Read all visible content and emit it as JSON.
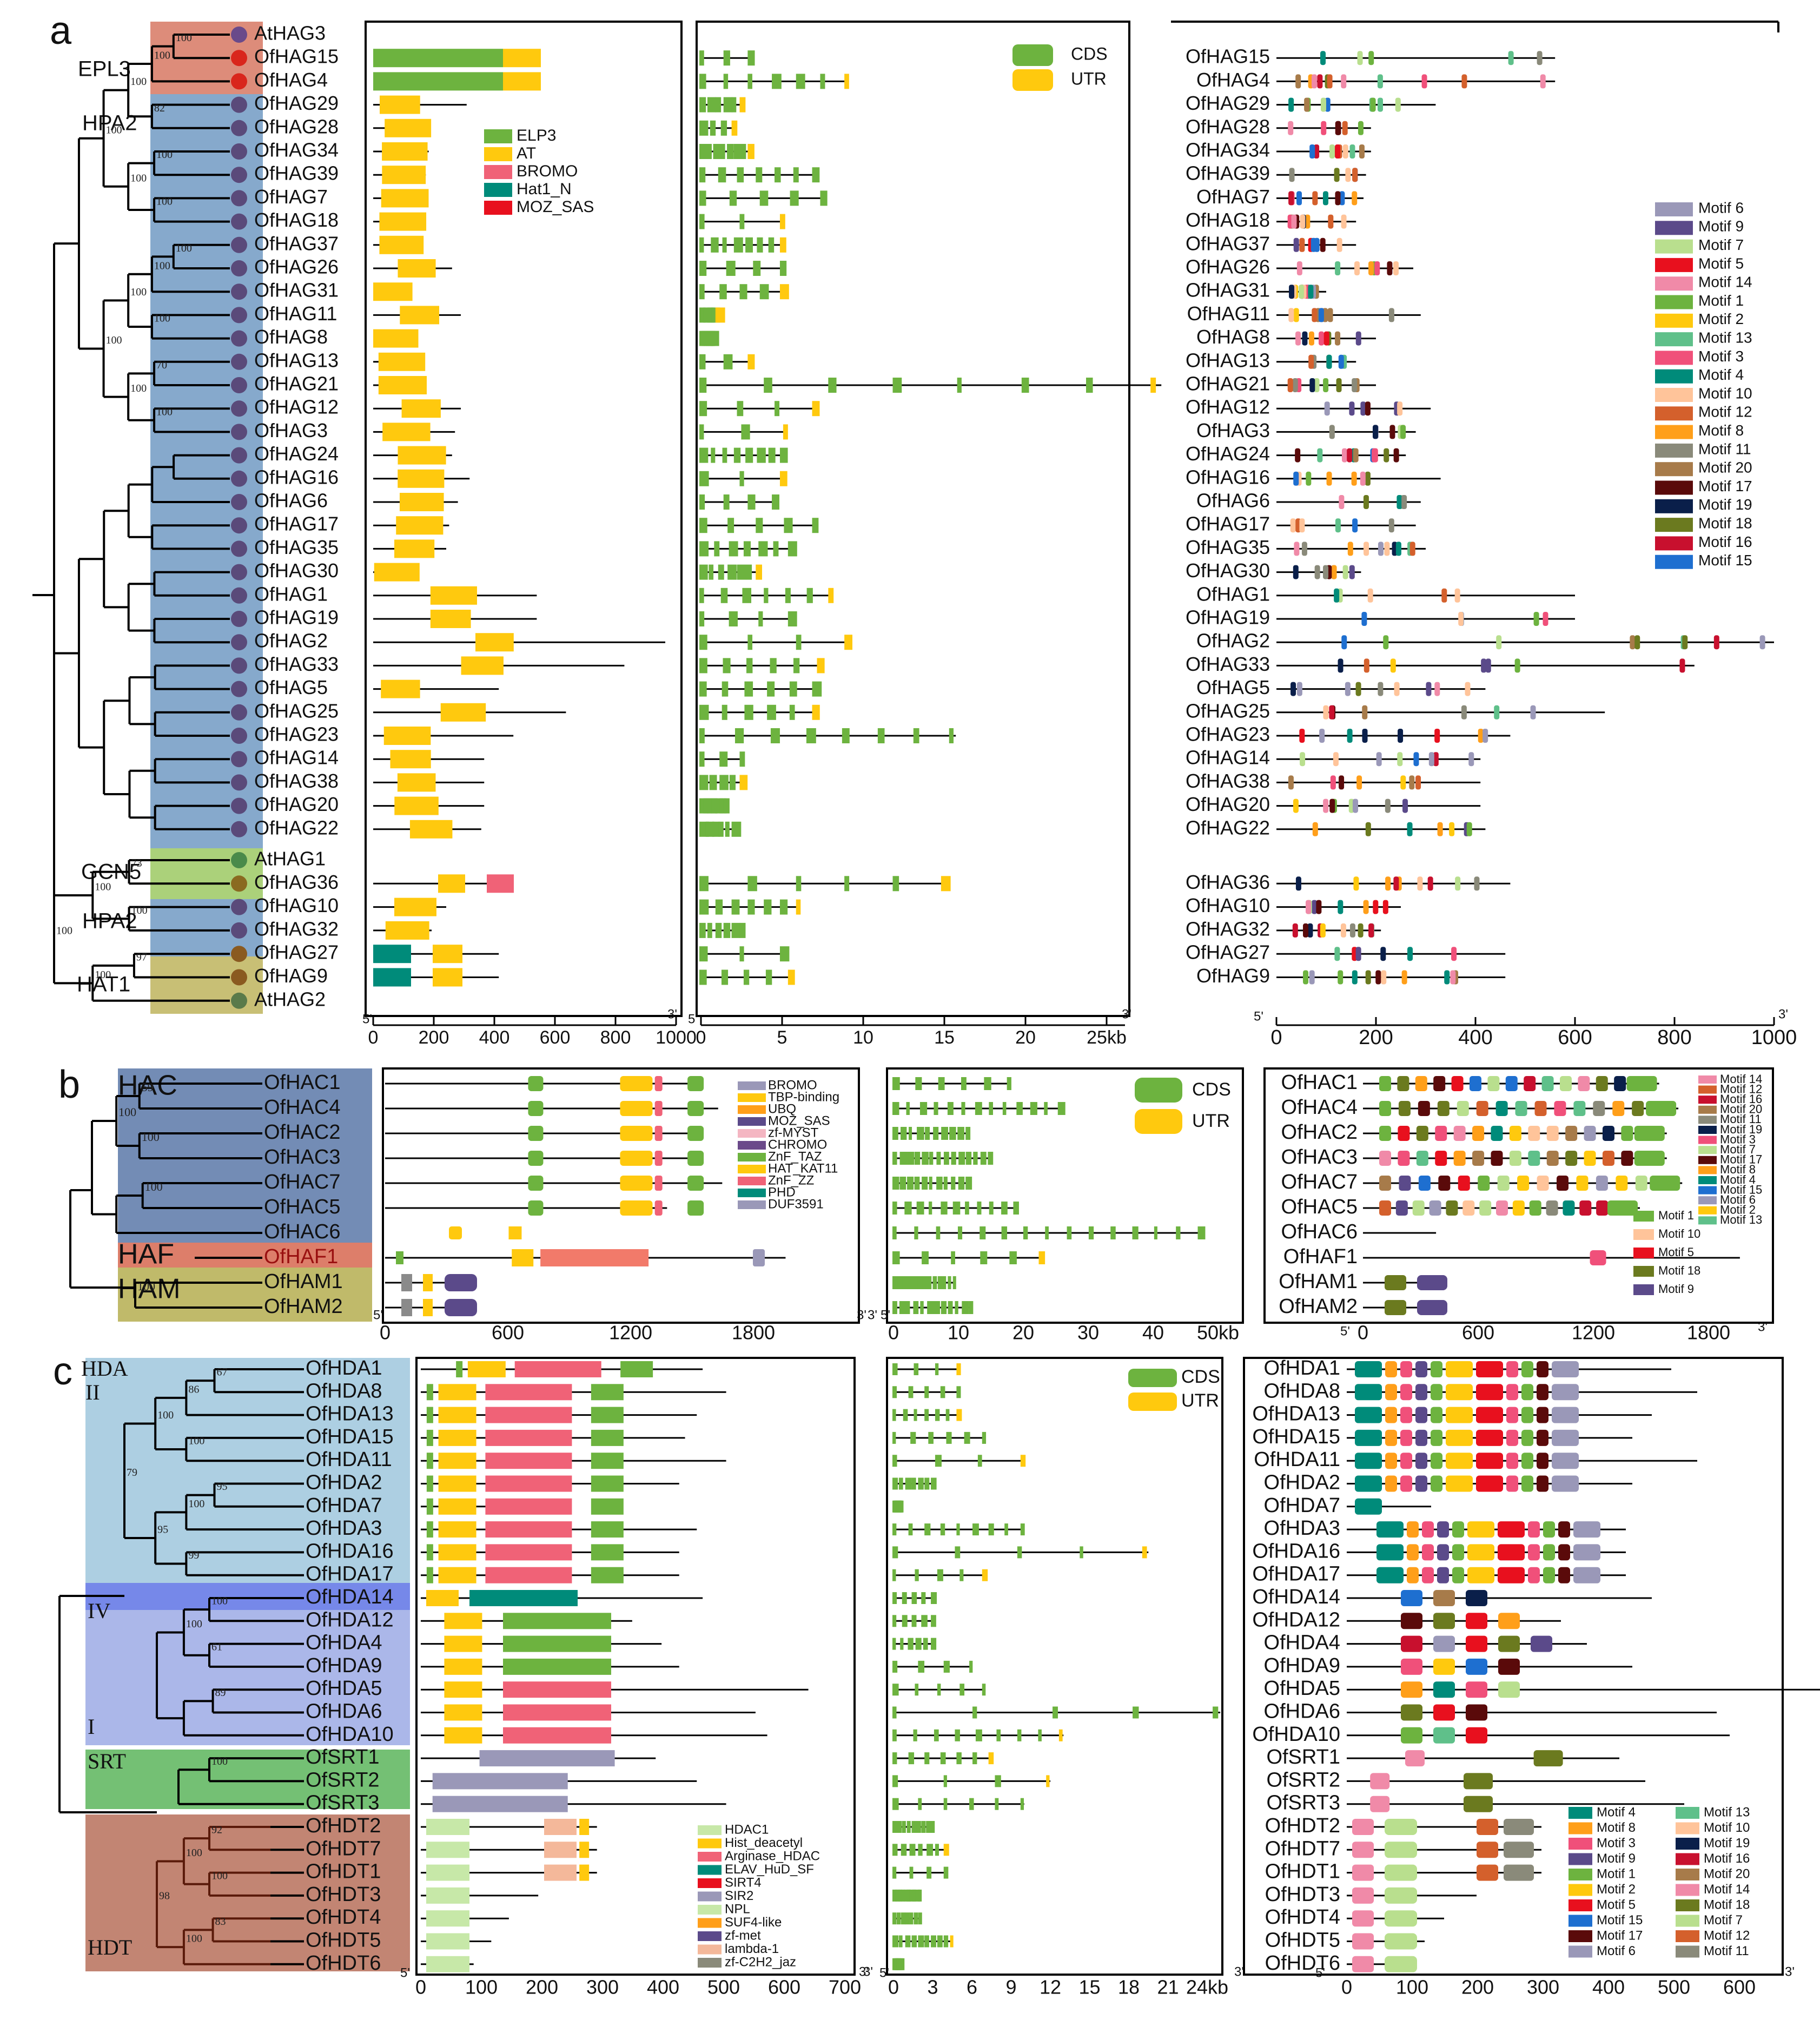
{
  "panel_labels": [
    "a",
    "b",
    "c"
  ],
  "a": {
    "groups": [
      "EPL3",
      "HPA2",
      "GCN5",
      "HPA2",
      "HAT1"
    ],
    "taxa": [
      "AtHAG3",
      "OfHAG15",
      "OfHAG4",
      "OfHAG29",
      "OfHAG28",
      "OfHAG34",
      "OfHAG39",
      "OfHAG7",
      "OfHAG18",
      "OfHAG37",
      "OfHAG26",
      "OfHAG31",
      "OfHAG11",
      "OfHAG8",
      "OfHAG13",
      "OfHAG21",
      "OfHAG12",
      "OfHAG3",
      "OfHAG24",
      "OfHAG16",
      "OfHAG6",
      "OfHAG17",
      "OfHAG35",
      "OfHAG30",
      "OfHAG1",
      "OfHAG19",
      "OfHAG2",
      "OfHAG33",
      "OfHAG5",
      "OfHAG25",
      "OfHAG23",
      "OfHAG14",
      "OfHAG38",
      "OfHAG20",
      "OfHAG22",
      "AtHAG1",
      "OfHAG36",
      "OfHAG10",
      "OfHAG32",
      "OfHAG27",
      "OfHAG9",
      "AtHAG2"
    ],
    "domain_legend": [
      "ELP3",
      "AT",
      "BROMO",
      "Hat1_N",
      "MOZ_SAS"
    ],
    "gene_legend": [
      "CDS",
      "UTR"
    ],
    "domain_axis": [
      "0",
      "200",
      "400",
      "600",
      "800",
      "1000"
    ],
    "gene_axis": [
      "0",
      "5",
      "10",
      "15",
      "20",
      "25kb"
    ],
    "motif_axis": [
      "0",
      "200",
      "400",
      "600",
      "800",
      "1000"
    ],
    "motif_legend": [
      "Motif 6",
      "Motif 9",
      "Motif 7",
      "Motif 5",
      "Motif 14",
      "Motif 1",
      "Motif 2",
      "Motif 13",
      "Motif 3",
      "Motif 4",
      "Motif 10",
      "Motif 12",
      "Motif 8",
      "Motif 11",
      "Motif 20",
      "Motif 17",
      "Motif 19",
      "Motif 18",
      "Motif 16",
      "Motif 15"
    ],
    "motif_taxa": [
      "OfHAG15",
      "OfHAG4",
      "OfHAG29",
      "OfHAG28",
      "OfHAG34",
      "OfHAG39",
      "OfHAG7",
      "OfHAG18",
      "OfHAG37",
      "OfHAG26",
      "OfHAG31",
      "OfHAG11",
      "OfHAG8",
      "OfHAG13",
      "OfHAG21",
      "OfHAG12",
      "OfHAG3",
      "OfHAG24",
      "OfHAG16",
      "OfHAG6",
      "OfHAG17",
      "OfHAG35",
      "OfHAG30",
      "OfHAG1",
      "OfHAG19",
      "OfHAG2",
      "OfHAG33",
      "OfHAG5",
      "OfHAG25",
      "OfHAG23",
      "OfHAG14",
      "OfHAG38",
      "OfHAG20",
      "OfHAG22",
      "OfHAG36",
      "OfHAG10",
      "OfHAG32",
      "OfHAG27",
      "OfHAG9"
    ],
    "bootstrap": [
      "100",
      "100",
      "82",
      "100",
      "100",
      "100",
      "100",
      "100",
      "100",
      "100",
      "100",
      "100",
      "70",
      "100",
      "100",
      "100",
      "73",
      "100",
      "100",
      "97",
      "100",
      "100"
    ]
  },
  "b": {
    "groups": [
      "HAC",
      "HAF",
      "HAM"
    ],
    "taxa": [
      "OfHAC1",
      "OfHAC4",
      "OfHAC2",
      "OfHAC3",
      "OfHAC7",
      "OfHAC5",
      "OfHAC6",
      "OfHAF1",
      "OfHAM1",
      "OfHAM2"
    ],
    "domain_legend": [
      "BROMO",
      "TBP-binding",
      "UBQ",
      "MOZ_SAS",
      "zf-MYST",
      "CHROMO",
      "ZnF_TAZ",
      "HAT_KAT11",
      "ZnF_ZZ",
      "PHD",
      "DUF3591"
    ],
    "gene_legend": [
      "CDS",
      "UTR"
    ],
    "domain_axis": [
      "0",
      "600",
      "1200",
      "1800"
    ],
    "gene_axis": [
      "0",
      "10",
      "20",
      "30",
      "40",
      "50kb"
    ],
    "motif_axis": [
      "0",
      "600",
      "1200",
      "1800"
    ],
    "motif_legend": [
      "Motif 14",
      "Motif 12",
      "Motif 16",
      "Motif 20",
      "Motif 11",
      "Motif 19",
      "Motif 3",
      "Motif 7",
      "Motif 17",
      "Motif 8",
      "Motif 4",
      "Motif 15",
      "Motif 6",
      "Motif 2",
      "Motif 13"
    ],
    "motif_legend2": [
      "Motif 1",
      "Motif 10",
      "Motif 5",
      "Motif 18",
      "Motif 9"
    ],
    "bootstrap": [
      "59",
      "100",
      "100",
      "100",
      "100",
      "100"
    ]
  },
  "c": {
    "groups": [
      "HDA",
      "II",
      "IV",
      "I",
      "SRT",
      "HDT"
    ],
    "taxa": [
      "OfHDA1",
      "OfHDA8",
      "OfHDA13",
      "OfHDA15",
      "OfHDA11",
      "OfHDA2",
      "OfHDA7",
      "OfHDA3",
      "OfHDA16",
      "OfHDA17",
      "OfHDA14",
      "OfHDA12",
      "OfHDA4",
      "OfHDA9",
      "OfHDA5",
      "OfHDA6",
      "OfHDA10",
      "OfSRT1",
      "OfSRT2",
      "OfSRT3",
      "OfHDT2",
      "OfHDT7",
      "OfHDT1",
      "OfHDT3",
      "OfHDT4",
      "OfHDT5",
      "OfHDT6"
    ],
    "domain_legend": [
      "HDAC1",
      "Hist_deacetyl",
      "Arginase_HDAC",
      "ELAV_HuD_SF",
      "SIRT4",
      "SIR2",
      "NPL",
      "SUF4-like",
      "zf-met",
      "lambda-1",
      "zf-C2H2_jaz"
    ],
    "gene_legend": [
      "CDS",
      "UTR"
    ],
    "domain_axis": [
      "0",
      "100",
      "200",
      "300",
      "400",
      "500",
      "600",
      "700"
    ],
    "gene_axis": [
      "0",
      "3",
      "6",
      "9",
      "12",
      "15",
      "18",
      "21",
      "24kb"
    ],
    "motif_axis": [
      "0",
      "100",
      "200",
      "300",
      "400",
      "500",
      "600"
    ],
    "motif_legend": [
      "Motif 4",
      "Motif 8",
      "Motif 3",
      "Motif 9",
      "Motif 1",
      "Motif 2",
      "Motif 5",
      "Motif 15",
      "Motif 17",
      "Motif 6"
    ],
    "motif_legend2": [
      "Motif 13",
      "Motif 10",
      "Motif 19",
      "Motif 16",
      "Motif 20",
      "Motif 14",
      "Motif 18",
      "Motif 7",
      "Motif 12",
      "Motif 11"
    ],
    "bootstrap": [
      "67",
      "86",
      "100",
      "100",
      "95",
      "100",
      "99",
      "95",
      "79",
      "100",
      "61",
      "100",
      "89",
      "100",
      "92",
      "100",
      "100",
      "83",
      "100",
      "98"
    ]
  },
  "ends": {
    "five": "5'",
    "three": "3'"
  },
  "colors": {
    "ELP3": "#6db33f",
    "AT": "#ffc90e",
    "BROMO": "#f06277",
    "Hat1_N": "#008b7a",
    "MOZ_SAS": "#e8101e",
    "CDS": "#6db33f",
    "UTR": "#ffc90e",
    "clade_red": "#d9806b",
    "clade_blue": "#7fa4c9",
    "clade_green": "#a6cf73",
    "clade_olive": "#c5bc6e",
    "hdaII": "#a9cce0",
    "hdaIV": "#6f82e8",
    "hdaI": "#a6b3e8",
    "srt": "#6dbd6d",
    "hdt": "#bf7e6b"
  }
}
